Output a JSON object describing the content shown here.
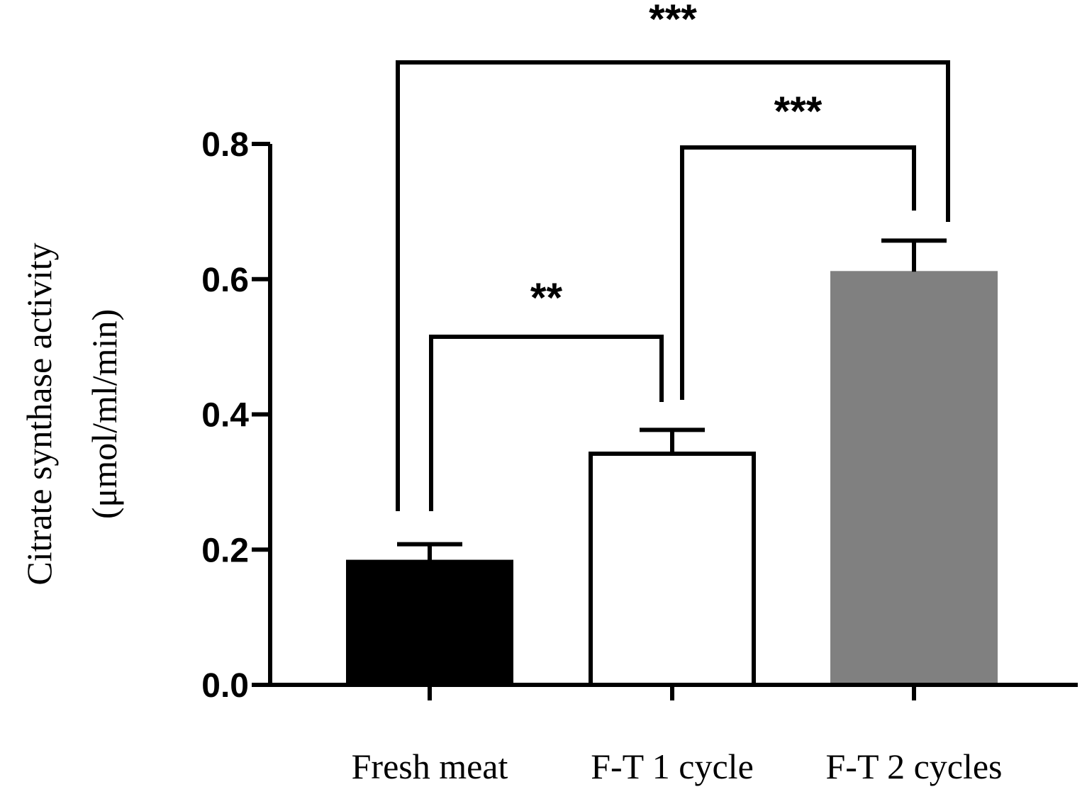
{
  "chart_data": {
    "type": "bar",
    "title": "",
    "xlabel": "",
    "ylabel": "Citrate synthase activity",
    "ylabel_unit": "(μmol/ml/min)",
    "ylim": [
      0,
      0.8
    ],
    "yticks": [
      "0.0",
      "0.2",
      "0.4",
      "0.6",
      "0.8"
    ],
    "ytick_values": [
      0,
      0.2,
      0.4,
      0.6,
      0.8
    ],
    "grid": false,
    "categories": [
      "Fresh meat",
      "F-T 1 cycle",
      "F-T 2 cycles"
    ],
    "values": [
      0.185,
      0.345,
      0.612
    ],
    "errors": [
      0.023,
      0.032,
      0.045
    ],
    "bar_styles": [
      {
        "fill": "#000000",
        "stroke": "#000000"
      },
      {
        "fill": "#ffffff",
        "stroke": "#000000"
      },
      {
        "fill": "#808080",
        "stroke": "none"
      }
    ],
    "significance": [
      {
        "from": 0,
        "to": 1,
        "label": "**"
      },
      {
        "from": 1,
        "to": 2,
        "label": "***"
      },
      {
        "from": 0,
        "to": 2,
        "label": "***"
      }
    ]
  }
}
